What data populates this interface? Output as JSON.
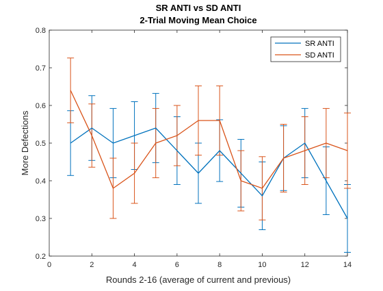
{
  "chart_data": {
    "type": "line",
    "title": "SR ANTI vs SD ANTI",
    "subtitle": "2-Trial Moving Mean Choice",
    "xlabel": "Rounds 2-16 (average of current and previous)",
    "ylabel": "More Defections",
    "xlim": [
      0,
      14
    ],
    "ylim": [
      0.2,
      0.8
    ],
    "xticks": [
      0,
      2,
      4,
      6,
      8,
      10,
      12,
      14
    ],
    "yticks": [
      0.2,
      0.3,
      0.4,
      0.5,
      0.6,
      0.7,
      0.8
    ],
    "grid": false,
    "legend_position": "top-right",
    "x": [
      1,
      2,
      3,
      4,
      5,
      6,
      7,
      8,
      9,
      10,
      11,
      12,
      13,
      14
    ],
    "series": [
      {
        "name": "SR ANTI",
        "color": "#0072BD",
        "values": [
          0.5,
          0.54,
          0.5,
          0.52,
          0.54,
          0.48,
          0.42,
          0.48,
          0.42,
          0.36,
          0.46,
          0.5,
          0.4,
          0.3
        ],
        "error": [
          0.086,
          0.086,
          0.092,
          0.09,
          0.092,
          0.09,
          0.08,
          0.082,
          0.09,
          0.09,
          0.086,
          0.092,
          0.09,
          0.09
        ]
      },
      {
        "name": "SD ANTI",
        "color": "#D95319",
        "values": [
          0.64,
          0.52,
          0.38,
          0.42,
          0.5,
          0.52,
          0.56,
          0.56,
          0.4,
          0.38,
          0.46,
          0.48,
          0.5,
          0.48
        ],
        "error": [
          0.086,
          0.084,
          0.08,
          0.08,
          0.092,
          0.08,
          0.092,
          0.092,
          0.08,
          0.084,
          0.09,
          0.09,
          0.092,
          0.1
        ]
      }
    ]
  }
}
